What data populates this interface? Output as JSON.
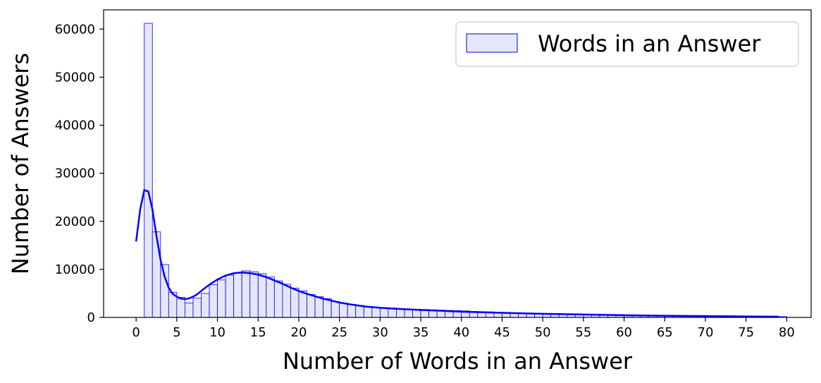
{
  "chart_data": {
    "type": "bar",
    "xlabel": "Number of Words in an Answer",
    "ylabel": "Number of Answers",
    "xlim": [
      -4,
      83
    ],
    "ylim": [
      0,
      64000
    ],
    "xticks": [
      0,
      5,
      10,
      15,
      20,
      25,
      30,
      35,
      40,
      45,
      50,
      55,
      60,
      65,
      70,
      75,
      80
    ],
    "yticks": [
      0,
      10000,
      20000,
      30000,
      40000,
      50000,
      60000
    ],
    "grid": false,
    "legend_position": "top-right",
    "colors": {
      "bar_fill": "#e6e6fa",
      "bar_edge": "#0000ff",
      "kde": "#0000ff",
      "axis": "#000000"
    },
    "series": [
      {
        "name": "Words in an Answer",
        "bin_width": 1,
        "bin_starts": [
          1,
          2,
          3,
          4,
          5,
          6,
          7,
          8,
          9,
          10,
          11,
          12,
          13,
          14,
          15,
          16,
          17,
          18,
          19,
          20,
          21,
          22,
          23,
          24,
          25,
          26,
          27,
          28,
          29,
          30,
          31,
          32,
          33,
          34,
          35,
          36,
          37,
          38,
          39,
          40,
          41,
          42,
          43,
          44,
          45,
          46,
          47,
          48,
          49,
          50,
          51,
          52,
          53,
          54,
          55,
          56,
          57,
          58,
          59,
          60,
          61,
          62,
          63,
          64,
          65,
          66,
          67,
          68,
          69,
          70,
          71,
          72,
          73,
          74,
          75,
          76,
          77,
          78,
          79
        ],
        "values": [
          61200,
          17800,
          11000,
          5200,
          4200,
          3000,
          4000,
          5000,
          6800,
          7800,
          8800,
          9200,
          9700,
          9500,
          9100,
          8400,
          7600,
          6900,
          6100,
          5500,
          4800,
          4300,
          3900,
          3300,
          3000,
          2700,
          2500,
          2300,
          2100,
          2000,
          1950,
          1850,
          1750,
          1700,
          1650,
          1580,
          1500,
          1450,
          1400,
          1350,
          1250,
          1200,
          1150,
          1080,
          1020,
          960,
          900,
          850,
          800,
          760,
          720,
          680,
          640,
          600,
          570,
          540,
          510,
          480,
          460,
          440,
          420,
          400,
          380,
          360,
          340,
          320,
          300,
          290,
          280,
          270,
          260,
          250,
          240,
          230,
          220,
          210,
          200,
          190,
          180
        ]
      }
    ],
    "kde": {
      "x": [
        0,
        0.5,
        1,
        1.5,
        2,
        2.5,
        3,
        3.5,
        4,
        4.5,
        5,
        5.5,
        6,
        6.5,
        7,
        7.5,
        8,
        9,
        10,
        11,
        12,
        13,
        14,
        15,
        16,
        17,
        18,
        19,
        20,
        21,
        22,
        23,
        24,
        25,
        26,
        28,
        30,
        32,
        35,
        38,
        40,
        45,
        50,
        55,
        60,
        65,
        70,
        75,
        79
      ],
      "y": [
        15800,
        22500,
        26500,
        26200,
        22500,
        17000,
        12000,
        8500,
        6200,
        4900,
        4300,
        3900,
        3800,
        3950,
        4300,
        4800,
        5500,
        6800,
        7900,
        8700,
        9200,
        9350,
        9200,
        8900,
        8400,
        7700,
        7000,
        6200,
        5500,
        4900,
        4400,
        3900,
        3500,
        3100,
        2800,
        2300,
        2000,
        1800,
        1550,
        1350,
        1200,
        950,
        750,
        600,
        450,
        350,
        270,
        200,
        150
      ]
    }
  }
}
